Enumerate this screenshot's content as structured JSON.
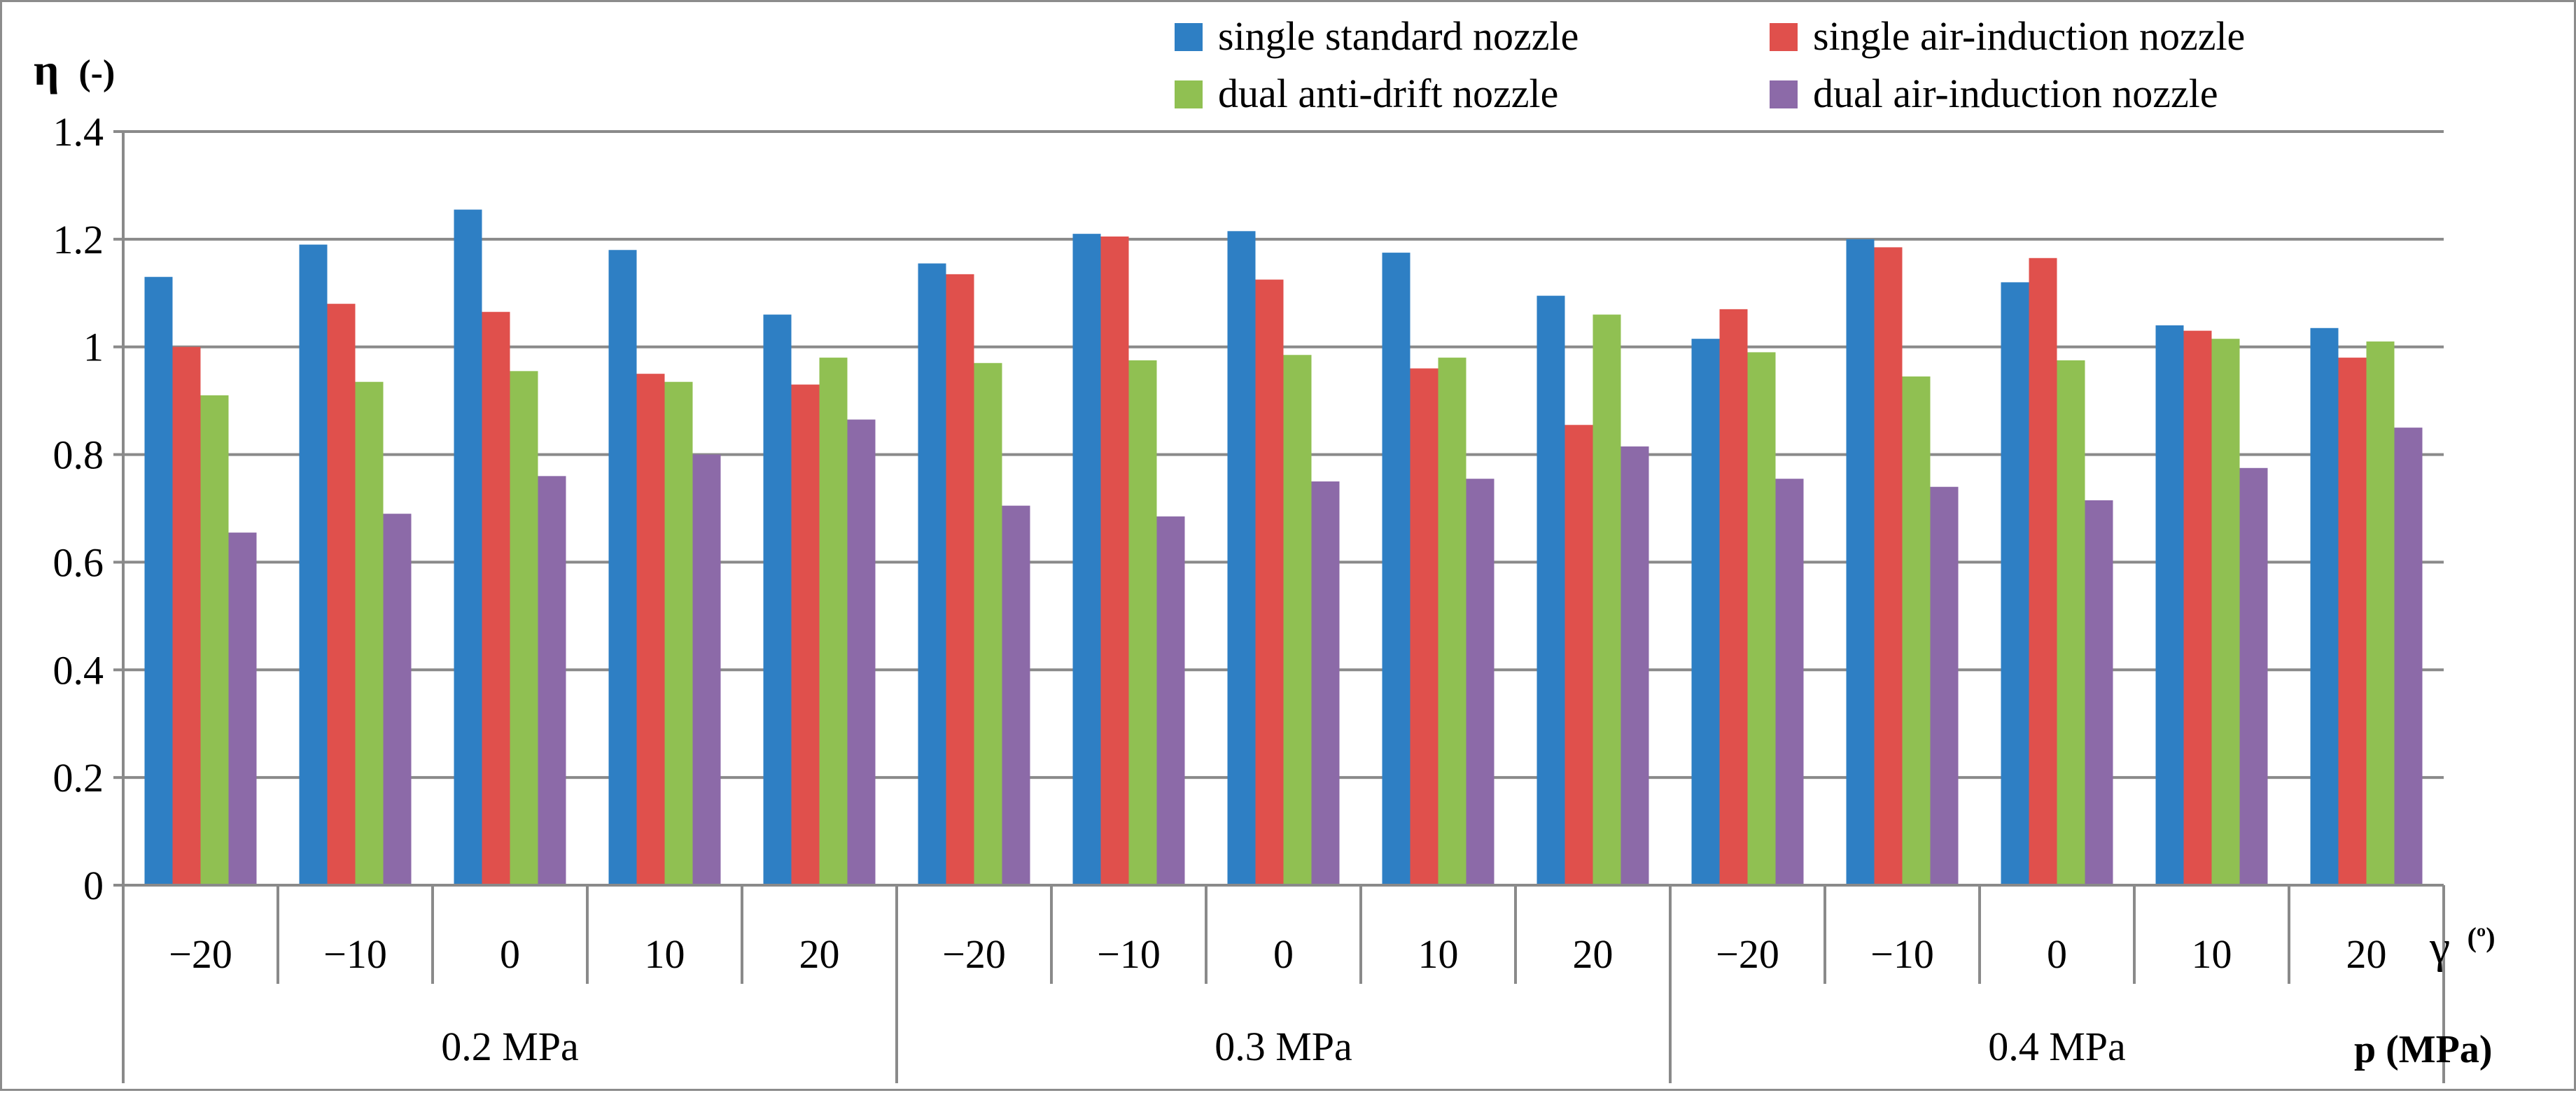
{
  "chart_data": {
    "type": "bar",
    "ylabel": "η (-)",
    "ylabel_symbol": "η",
    "ylabel_unit": "(-)",
    "xlabel_inner": "γ (º)",
    "xlabel_inner_symbol": "γ",
    "xlabel_inner_unit": "(º)",
    "xlabel_outer": "p (MPa)",
    "ylim": [
      0,
      1.4
    ],
    "yticks": [
      "0",
      "0.2",
      "0.4",
      "0.6",
      "0.8",
      "1",
      "1.2",
      "1.4"
    ],
    "ytick_values": [
      0,
      0.2,
      0.4,
      0.6,
      0.8,
      1.0,
      1.2,
      1.4
    ],
    "grid": true,
    "legend_position": "top-right",
    "groups": [
      {
        "label": "0.2 MPa",
        "angles": [
          "−20",
          "−10",
          "0",
          "10",
          "20"
        ]
      },
      {
        "label": "0.3 MPa",
        "angles": [
          "−20",
          "−10",
          "0",
          "10",
          "20"
        ]
      },
      {
        "label": "0.4 MPa",
        "angles": [
          "−20",
          "−10",
          "0",
          "10",
          "20"
        ]
      }
    ],
    "series": [
      {
        "name": "single standard nozzle",
        "color": "#2e7fc4",
        "values": [
          1.13,
          1.19,
          1.255,
          1.18,
          1.06,
          1.155,
          1.21,
          1.215,
          1.175,
          1.095,
          1.015,
          1.2,
          1.12,
          1.04,
          1.035
        ]
      },
      {
        "name": "single air-induction nozzle",
        "color": "#e0504c",
        "values": [
          1.0,
          1.08,
          1.065,
          0.95,
          0.93,
          1.135,
          1.205,
          1.125,
          0.96,
          0.855,
          1.07,
          1.185,
          1.165,
          1.03,
          0.98
        ]
      },
      {
        "name": "dual anti-drift nozzle",
        "color": "#90c052",
        "values": [
          0.91,
          0.935,
          0.955,
          0.935,
          0.98,
          0.97,
          0.975,
          0.985,
          0.98,
          1.06,
          0.99,
          0.945,
          0.975,
          1.015,
          1.01
        ]
      },
      {
        "name": "dual air-induction nozzle",
        "color": "#8c6aa8",
        "values": [
          0.655,
          0.69,
          0.76,
          0.8,
          0.865,
          0.705,
          0.685,
          0.75,
          0.755,
          0.815,
          0.755,
          0.74,
          0.715,
          0.775,
          0.85
        ]
      }
    ]
  }
}
